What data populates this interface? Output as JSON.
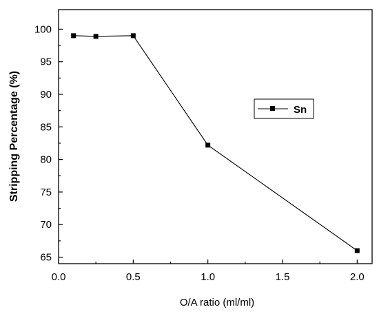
{
  "chart_data": {
    "type": "line",
    "xlabel": "O/A ratio (ml/ml)",
    "ylabel": "Stripping Percentage (%)",
    "xlim": [
      0.0,
      2.1
    ],
    "ylim": [
      64,
      103
    ],
    "x_ticks": [
      0.0,
      0.5,
      1.0,
      1.5,
      2.0
    ],
    "x_tick_labels": [
      "0.0",
      "0.5",
      "1.0",
      "1.5",
      "2.0"
    ],
    "y_ticks": [
      65,
      70,
      75,
      80,
      85,
      90,
      95,
      100
    ],
    "y_tick_labels": [
      "65",
      "70",
      "75",
      "80",
      "85",
      "90",
      "95",
      "100"
    ],
    "grid": false,
    "legend_position": "right-middle",
    "series": [
      {
        "name": "Sn",
        "x": [
          0.1,
          0.25,
          0.5,
          1.0,
          2.0
        ],
        "y": [
          99.0,
          98.9,
          99.0,
          82.2,
          66.0
        ],
        "marker": "square",
        "color": "#000000"
      }
    ]
  }
}
